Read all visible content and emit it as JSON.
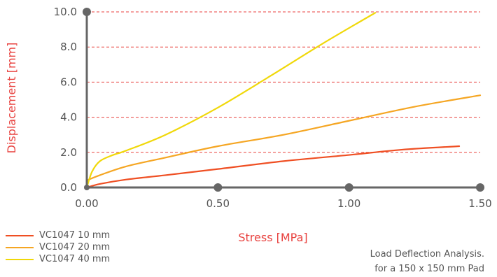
{
  "chart_data": {
    "type": "line",
    "xlabel": "Stress [MPa]",
    "ylabel": "Displacement [mm]",
    "xlim": [
      0,
      1.5
    ],
    "ylim": [
      0,
      10
    ],
    "x_ticks": [
      "0.00",
      "0.50",
      "1.00",
      "1.50"
    ],
    "y_ticks": [
      "0.0",
      "2.0",
      "4.0",
      "6.0",
      "8.0",
      "10.0"
    ],
    "grid": "horizontal dashed",
    "series": [
      {
        "name": "VC1047 10 mm",
        "color": "#ef4f23",
        "x": [
          0,
          0.05,
          0.15,
          0.3,
          0.5,
          0.75,
          1.0,
          1.2,
          1.42
        ],
        "y": [
          0,
          0.2,
          0.45,
          0.7,
          1.05,
          1.5,
          1.85,
          2.15,
          2.35
        ]
      },
      {
        "name": "VC1047 20 mm",
        "color": "#f5a623",
        "x": [
          0,
          0.05,
          0.15,
          0.3,
          0.5,
          0.75,
          1.0,
          1.25,
          1.5
        ],
        "y": [
          0.4,
          0.7,
          1.2,
          1.7,
          2.35,
          3.0,
          3.8,
          4.6,
          5.25
        ]
      },
      {
        "name": "VC1047 40 mm",
        "color": "#f0d80a",
        "x": [
          0,
          0.02,
          0.05,
          0.1,
          0.15,
          0.3,
          0.5,
          0.7,
          0.9,
          1.1
        ],
        "y": [
          0,
          0.9,
          1.5,
          1.85,
          2.1,
          3.0,
          4.55,
          6.35,
          8.2,
          9.95
        ]
      }
    ]
  },
  "caption": {
    "line1": "Load Deflection Analysis.",
    "line2": "for a 150 x 150 mm Pad"
  },
  "colors": {
    "axis": "#666666",
    "grid": "#e8423f",
    "axis_title": "#e8423f",
    "tick_text": "#555555"
  }
}
